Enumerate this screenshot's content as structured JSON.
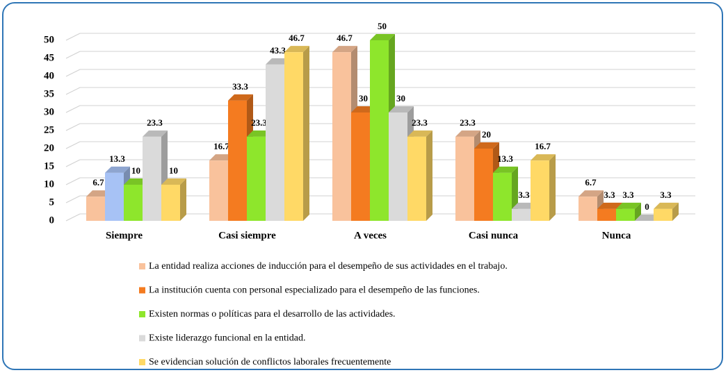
{
  "chart_data": {
    "type": "bar3d",
    "categories": [
      "Siempre",
      "Casi siempre",
      "A veces",
      "Casi nunca",
      "Nunca"
    ],
    "series": [
      {
        "name": "La entidad realiza acciones de inducción para el desempeño de sus actividades en el trabajo.",
        "color": "#f9c29c",
        "values": [
          6.7,
          16.7,
          46.7,
          23.3,
          6.7
        ]
      },
      {
        "name": "La institución cuenta con personal especializado para el desempeño de las funciones.",
        "color": "#f47b20",
        "colors": [
          "#a7c2f5",
          "#f47b20",
          "#f47b20",
          "#f47b20",
          "#f47b20"
        ],
        "values": [
          13.3,
          33.3,
          30,
          20,
          3.3
        ]
      },
      {
        "name": "Existen normas o políticas para el desarrollo de las actividades.",
        "color": "#8ee62c",
        "values": [
          10,
          23.3,
          50,
          13.3,
          3.3
        ]
      },
      {
        "name": "Existe liderazgo funcional en la entidad.",
        "color": "#dadada",
        "values": [
          23.3,
          43.3,
          30,
          3.3,
          0
        ]
      },
      {
        "name": "Se evidencian solución de conflictos laborales frecuentemente",
        "color": "#ffd966",
        "values": [
          10,
          46.7,
          23.3,
          16.7,
          3.3
        ]
      }
    ],
    "ylim": [
      0,
      50
    ],
    "yticks": [
      0,
      5,
      10,
      15,
      20,
      25,
      30,
      35,
      40,
      45,
      50
    ],
    "grid": true,
    "legend": "bottom"
  }
}
